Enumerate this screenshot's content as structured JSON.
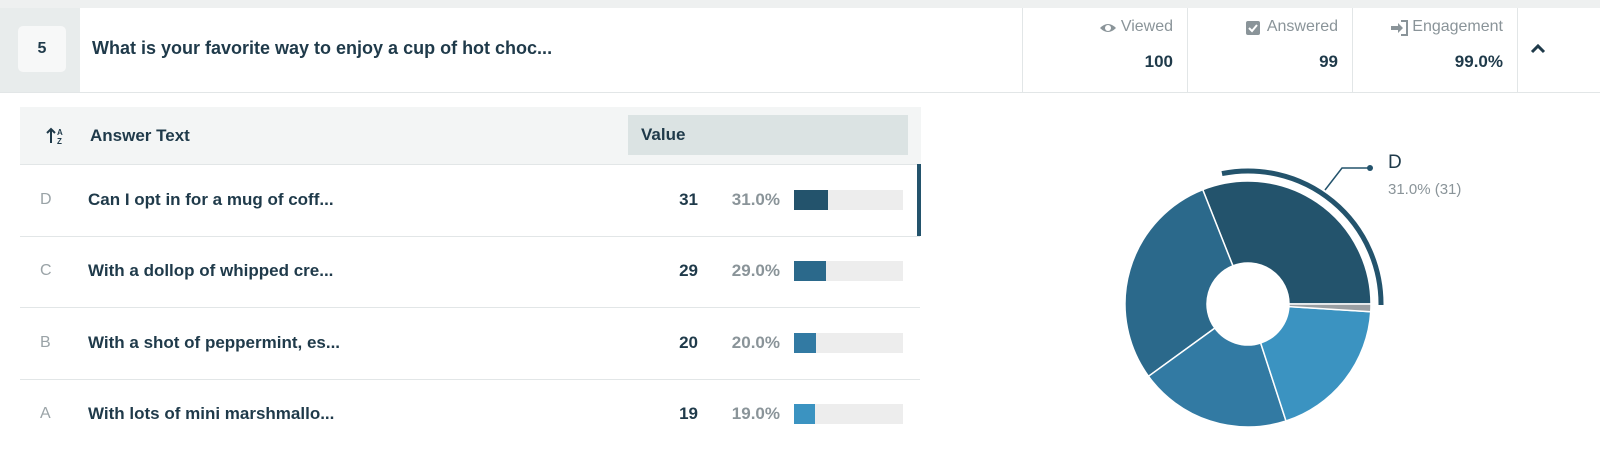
{
  "question": {
    "number": "5",
    "text": "What is your favorite way to enjoy a cup of hot choc..."
  },
  "stats": [
    {
      "label": "Viewed",
      "value": 100
    },
    {
      "label": "Answered",
      "value": 99
    },
    {
      "label": "Engagement",
      "value": {
        "value": 99,
        "label": "99.0%"
      }
    }
  ],
  "table": {
    "headers": [
      "Answer Text",
      "Value"
    ],
    "rows": [
      {
        "letter": "D",
        "text": "Can I opt in for a mug of coff...",
        "count": 31,
        "percent": {
          "value": 31,
          "label": "31.0%"
        },
        "color": "#23536c"
      },
      {
        "letter": "C",
        "text": "With a dollop of whipped cre...",
        "count": 29,
        "percent": {
          "value": 29,
          "label": "29.0%"
        },
        "color": "#2b698b"
      },
      {
        "letter": "B",
        "text": "With a shot of peppermint, es...",
        "count": 20,
        "percent": {
          "value": 20,
          "label": "20.0%"
        },
        "color": "#327aa3"
      },
      {
        "letter": "A",
        "text": "With lots of mini marshmallo...",
        "count": 19,
        "percent": {
          "value": 19,
          "label": "19.0%"
        },
        "color": "#3b93c1"
      }
    ]
  },
  "callout": {
    "label": "D",
    "text": "31.0% (31)"
  }
}
